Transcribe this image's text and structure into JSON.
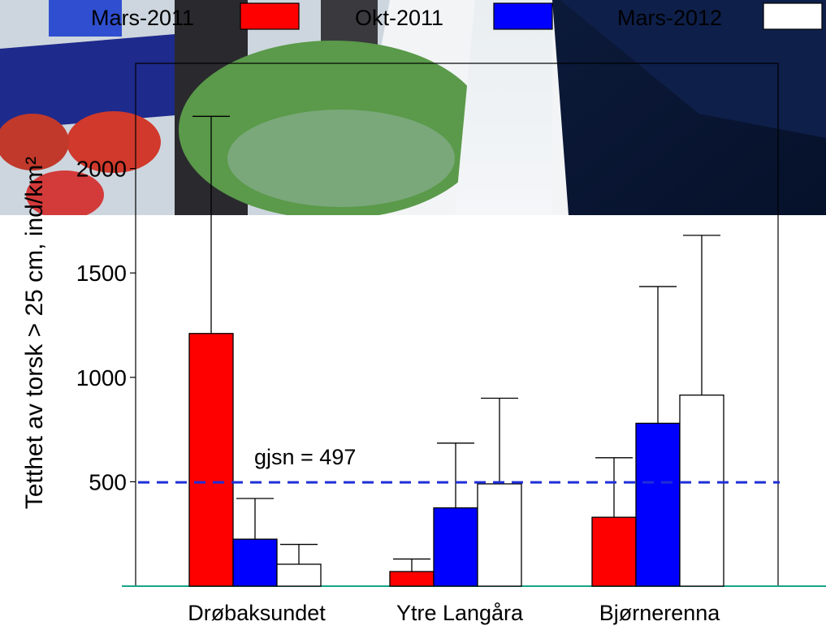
{
  "chart_data": {
    "type": "bar",
    "ylabel": "Tetthet av torsk > 25 cm, ind/km²",
    "xlabel": "",
    "ylim": [
      0,
      2300
    ],
    "yticks": [
      500,
      1000,
      1500,
      2000
    ],
    "ytick_labels": [
      "500",
      "1000",
      "1500",
      "2000"
    ],
    "categories": [
      "Drøbaksundet",
      "Ytre Langåra",
      "Bjørnerenna"
    ],
    "series": [
      {
        "name": "Mars-2011",
        "color": "#ff0000",
        "values": [
          1210,
          70,
          330
        ],
        "err_upper": [
          2250,
          130,
          615
        ]
      },
      {
        "name": "Okt-2011",
        "color": "#0000ff",
        "values": [
          225,
          375,
          780
        ],
        "err_upper": [
          420,
          685,
          1435
        ]
      },
      {
        "name": "Mars-2012",
        "color": "#ffffff",
        "values": [
          105,
          490,
          915
        ],
        "err_upper": [
          200,
          900,
          1680
        ]
      }
    ],
    "legend": {
      "placement": "top"
    },
    "mean_line": {
      "value": 497,
      "label": "gjsn = 497",
      "color": "#1f2fd6",
      "style": "dashed"
    },
    "grid": false,
    "background": "photo",
    "baseline_color": "#17a589"
  }
}
